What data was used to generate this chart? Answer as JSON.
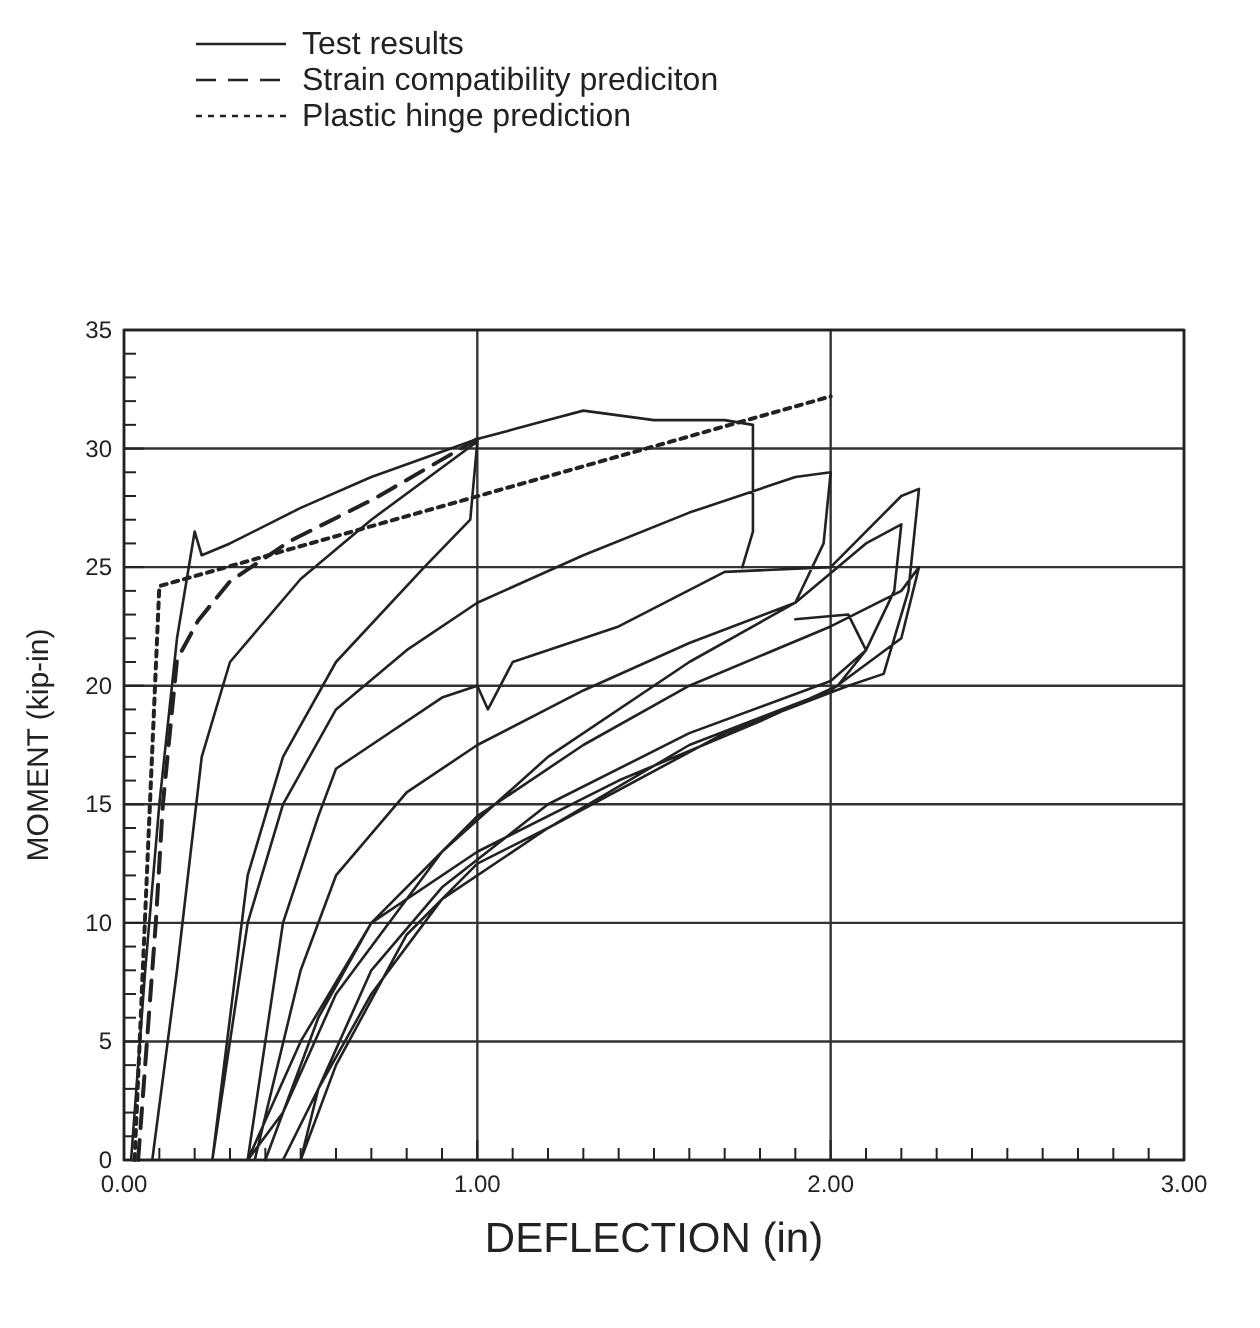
{
  "chart_data": {
    "type": "line",
    "xlabel": "DEFLECTION  (in)",
    "ylabel": "MOMENT  (kip-in)",
    "xlim": [
      0,
      3
    ],
    "ylim": [
      0,
      35
    ],
    "xticks": [
      {
        "value": 0,
        "label": "0.00"
      },
      {
        "value": 0.1,
        "label": null
      },
      {
        "value": 0.2,
        "label": null
      },
      {
        "value": 0.3,
        "label": null
      },
      {
        "value": 0.4,
        "label": null
      },
      {
        "value": 0.5,
        "label": null
      },
      {
        "value": 0.6,
        "label": null
      },
      {
        "value": 0.7,
        "label": null
      },
      {
        "value": 0.8,
        "label": null
      },
      {
        "value": 0.9,
        "label": null
      },
      {
        "value": 1,
        "label": "1.00"
      },
      {
        "value": 1.1,
        "label": null
      },
      {
        "value": 1.2,
        "label": null
      },
      {
        "value": 1.3,
        "label": null
      },
      {
        "value": 1.4,
        "label": null
      },
      {
        "value": 1.5,
        "label": null
      },
      {
        "value": 1.6,
        "label": null
      },
      {
        "value": 1.7,
        "label": null
      },
      {
        "value": 1.8,
        "label": null
      },
      {
        "value": 1.9,
        "label": null
      },
      {
        "value": 2,
        "label": "2.00"
      },
      {
        "value": 2.1,
        "label": null
      },
      {
        "value": 2.2,
        "label": null
      },
      {
        "value": 2.3,
        "label": null
      },
      {
        "value": 2.4,
        "label": null
      },
      {
        "value": 2.5,
        "label": null
      },
      {
        "value": 2.6,
        "label": null
      },
      {
        "value": 2.7,
        "label": null
      },
      {
        "value": 2.8,
        "label": null
      },
      {
        "value": 2.9,
        "label": null
      },
      {
        "value": 3,
        "label": "3.00"
      }
    ],
    "yticks": [
      0,
      {
        "value": 1,
        "label": null
      },
      {
        "value": 2,
        "label": null
      },
      {
        "value": 3,
        "label": null
      },
      {
        "value": 4,
        "label": null
      },
      5,
      {
        "value": 6,
        "label": null
      },
      {
        "value": 7,
        "label": null
      },
      {
        "value": 8,
        "label": null
      },
      {
        "value": 9,
        "label": null
      },
      10,
      {
        "value": 11,
        "label": null
      },
      {
        "value": 12,
        "label": null
      },
      {
        "value": 13,
        "label": null
      },
      {
        "value": 14,
        "label": null
      },
      15,
      {
        "value": 16,
        "label": null
      },
      {
        "value": 17,
        "label": null
      },
      {
        "value": 18,
        "label": null
      },
      {
        "value": 19,
        "label": null
      },
      20,
      {
        "value": 21,
        "label": null
      },
      {
        "value": 22,
        "label": null
      },
      {
        "value": 23,
        "label": null
      },
      {
        "value": 24,
        "label": null
      },
      25,
      {
        "value": 26,
        "label": null
      },
      {
        "value": 27,
        "label": null
      },
      {
        "value": 28,
        "label": null
      },
      {
        "value": 29,
        "label": null
      },
      30,
      {
        "value": 31,
        "label": null
      },
      {
        "value": 32,
        "label": null
      },
      {
        "value": 33,
        "label": null
      },
      {
        "value": 34,
        "label": null
      },
      35
    ],
    "grid": true,
    "legend": "top left",
    "marker": "none",
    "series": [
      {
        "name": "Test results",
        "color": "#222222",
        "line_style": "solid",
        "x": [
          0.02,
          0.06,
          0.1,
          0.15,
          0.2,
          0.22,
          0.3,
          0.5,
          0.7,
          1.0,
          1.1,
          1.2,
          1.3,
          1.5,
          1.7,
          1.78,
          1.78,
          1.75,
          null,
          0.08,
          0.15,
          0.22,
          0.3,
          0.5,
          0.7,
          1.0,
          0.98,
          0.85,
          0.6,
          0.45,
          0.35,
          0.3,
          0.25,
          null,
          0.25,
          0.35,
          0.45,
          0.6,
          0.8,
          1.0,
          1.3,
          1.6,
          1.9,
          2.0,
          1.98,
          1.9,
          1.6,
          1.2,
          0.9,
          0.6,
          0.45,
          0.35,
          null,
          0.35,
          0.45,
          0.55,
          0.6,
          0.7,
          0.9,
          1.0,
          1.03,
          1.1,
          1.4,
          1.7,
          2.0,
          2.2,
          2.25,
          2.22,
          2.15,
          2.05,
          1.7,
          1.2,
          0.9,
          0.7,
          0.55,
          0.45,
          null,
          0.37,
          0.5,
          0.6,
          0.8,
          1.0,
          1.3,
          1.6,
          1.9,
          2.1,
          2.2,
          2.18,
          2.1,
          2.0,
          1.6,
          1.2,
          0.9,
          0.7,
          0.55,
          0.5,
          null,
          0.4,
          0.55,
          0.7,
          0.9,
          1.0,
          1.3,
          1.6,
          2.0,
          2.2,
          2.25,
          2.2,
          2.0,
          1.6,
          1.2,
          1.0,
          0.8,
          0.6,
          0.5,
          null,
          0.35,
          0.5,
          0.7,
          1.0,
          1.4,
          1.8,
          2.02,
          2.1,
          2.05,
          1.9
        ],
        "values": [
          0,
          8,
          15,
          22,
          26.5,
          25.5,
          26,
          27.5,
          28.8,
          30.4,
          30.8,
          31.2,
          31.6,
          31.2,
          31.2,
          31,
          26.5,
          25,
          null,
          0,
          8,
          17,
          21,
          24.5,
          27,
          30.3,
          27,
          25,
          21,
          17,
          12,
          6,
          0,
          null,
          0,
          10,
          15,
          19,
          21.5,
          23.5,
          25.5,
          27.3,
          28.8,
          29,
          26,
          23.5,
          21,
          17,
          13,
          7,
          2,
          0,
          null,
          0,
          10,
          14.5,
          16.5,
          17.5,
          19.5,
          20,
          19,
          21,
          22.5,
          24.8,
          25,
          28,
          28.3,
          24,
          20.5,
          20,
          18,
          14,
          11,
          7,
          3,
          0,
          null,
          0,
          8,
          12,
          15.5,
          17.5,
          19.8,
          21.8,
          23.5,
          26,
          26.8,
          24,
          21.5,
          20.2,
          18,
          15,
          11.5,
          8,
          3,
          0,
          null,
          0,
          6,
          10,
          13,
          14.5,
          17.5,
          20,
          22.5,
          24,
          25,
          22,
          19.8,
          17.5,
          14,
          12.5,
          9.5,
          4,
          0,
          null,
          0,
          5,
          10,
          13,
          16,
          18.5,
          20,
          21.5,
          23,
          22.8
        ]
      },
      {
        "name": "Strain compatibility prediciton",
        "color": "#222222",
        "line_style": "dashed",
        "x": [
          0.04,
          0.09,
          0.11,
          0.15,
          0.21,
          0.3,
          0.47,
          0.71,
          1.0
        ],
        "values": [
          0,
          10,
          15,
          21.1,
          22.75,
          24.4,
          26.1,
          27.9,
          30.4
        ]
      },
      {
        "name": "Plastic hinge prediction",
        "color": "#222222",
        "line_style": "dotted",
        "x": [
          0.03,
          0.1,
          2.0
        ],
        "values": [
          0,
          24.2,
          32.2
        ]
      }
    ]
  }
}
